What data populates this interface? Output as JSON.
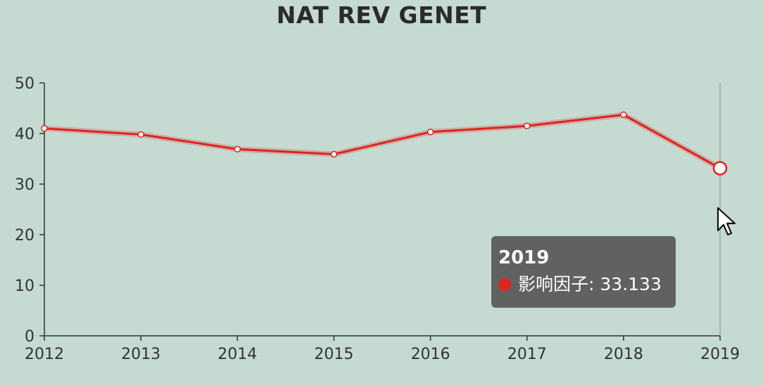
{
  "chart_data": {
    "type": "line",
    "title": "NAT REV GENET",
    "x": [
      "2012",
      "2013",
      "2014",
      "2015",
      "2016",
      "2017",
      "2018",
      "2019"
    ],
    "series": [
      {
        "name": "影响因子",
        "values": [
          41.0,
          39.8,
          36.9,
          35.9,
          40.3,
          41.5,
          43.7,
          33.133
        ],
        "color": "#e0231e"
      }
    ],
    "ylim": [
      0,
      50
    ],
    "yticks": [
      "0",
      "10",
      "20",
      "30",
      "40",
      "50"
    ],
    "grid": false,
    "highlighted_index": 7
  },
  "tooltip": {
    "title": "2019",
    "series_name": "影响因子",
    "value": "33.133",
    "dot_color": "#e0231e"
  },
  "colors": {
    "background": "#c5dbd2",
    "axis": "#333333",
    "line": "#e0231e"
  },
  "cursor": "pointer-arrow-icon"
}
